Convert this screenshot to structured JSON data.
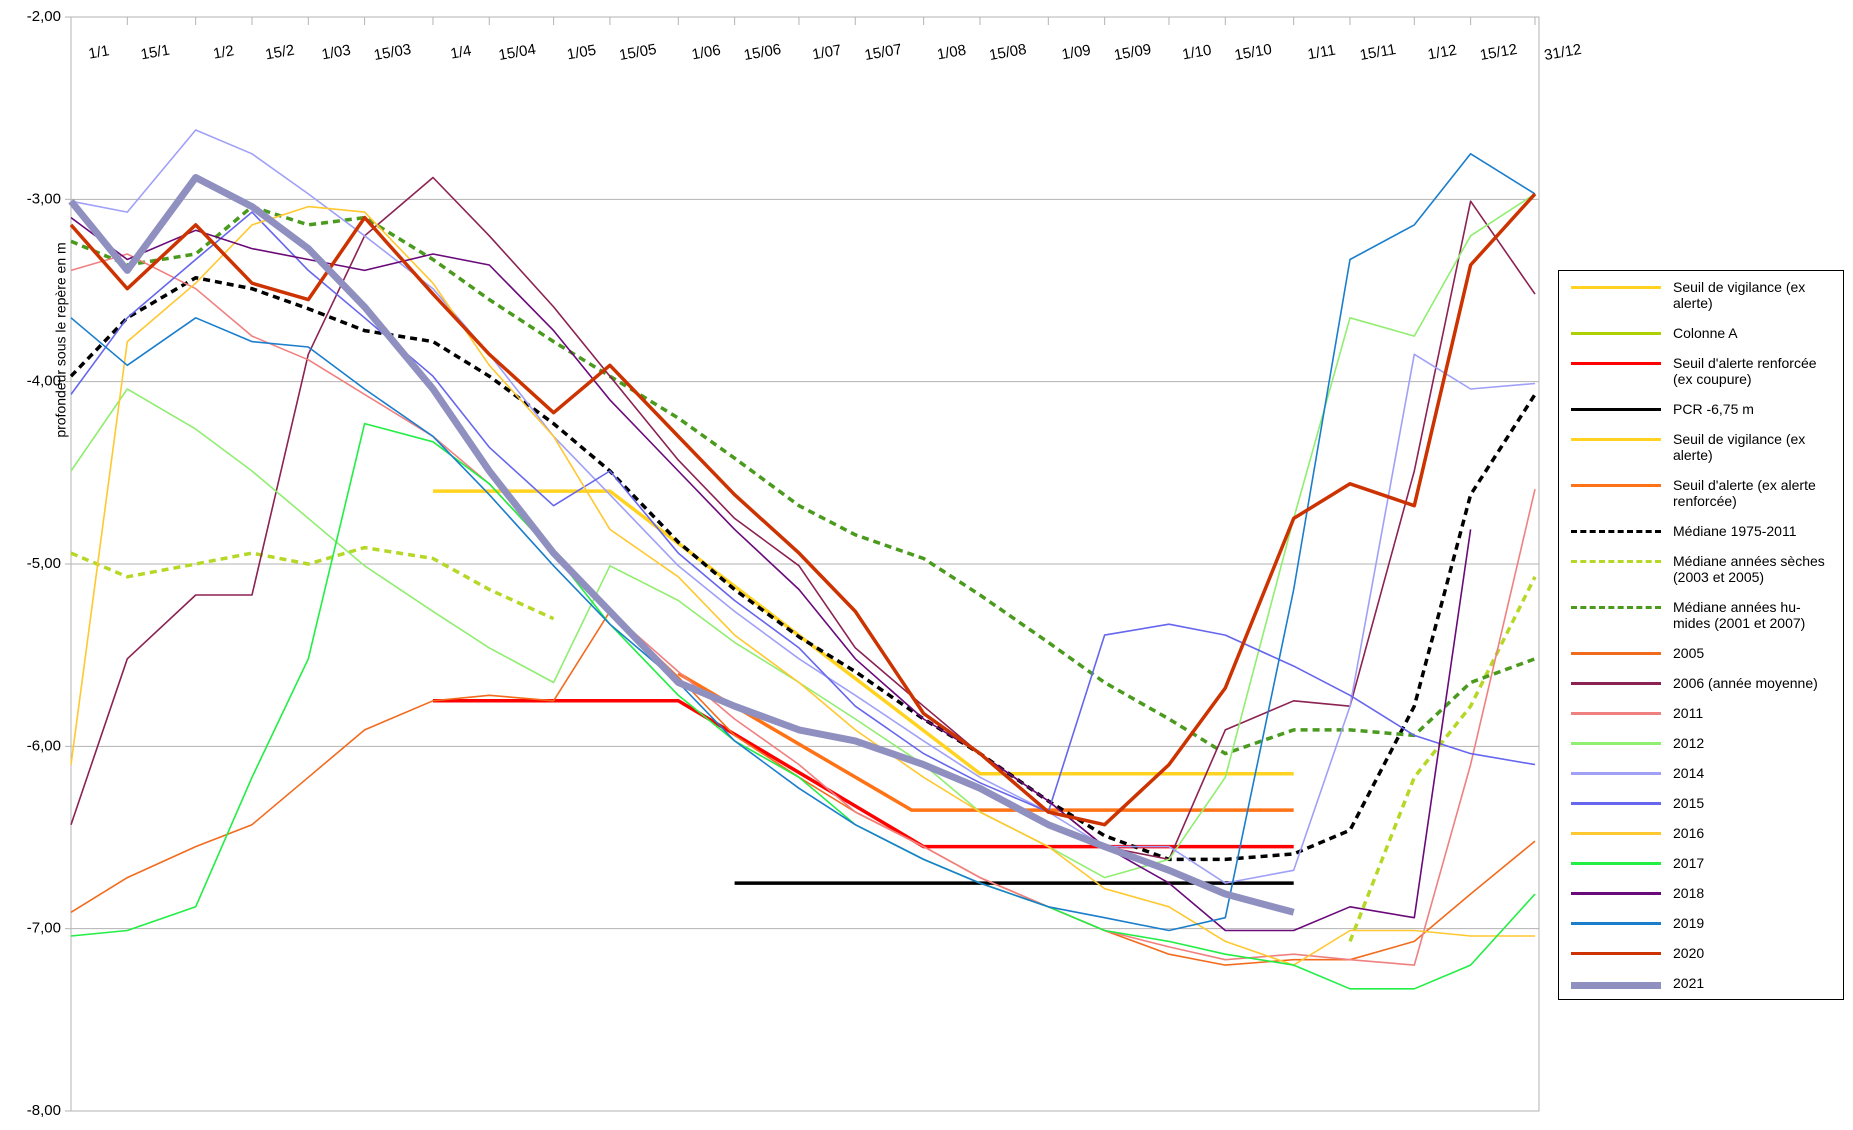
{
  "chart_data": {
    "type": "line",
    "y_label": "profondeur sous le repère en m",
    "xlim": [
      1,
      366
    ],
    "ylim": [
      -8,
      -2
    ],
    "grid": true,
    "legend": "right",
    "xticks": [
      {
        "value": 1,
        "label": "1/1"
      },
      {
        "value": 15,
        "label": "15/1"
      },
      {
        "value": 32,
        "label": "1/2"
      },
      {
        "value": 46,
        "label": "15/2"
      },
      {
        "value": 60,
        "label": "1/03"
      },
      {
        "value": 74,
        "label": "15/03"
      },
      {
        "value": 91,
        "label": "1/4"
      },
      {
        "value": 105,
        "label": "15/04"
      },
      {
        "value": 121,
        "label": "1/05"
      },
      {
        "value": 135,
        "label": "15/05"
      },
      {
        "value": 152,
        "label": "1/06"
      },
      {
        "value": 166,
        "label": "15/06"
      },
      {
        "value": 182,
        "label": "1/07"
      },
      {
        "value": 196,
        "label": "15/07"
      },
      {
        "value": 213,
        "label": "1/08"
      },
      {
        "value": 227,
        "label": "15/08"
      },
      {
        "value": 244,
        "label": "1/09"
      },
      {
        "value": 258,
        "label": "15/09"
      },
      {
        "value": 274,
        "label": "1/10"
      },
      {
        "value": 288,
        "label": "15/10"
      },
      {
        "value": 305,
        "label": "1/11"
      },
      {
        "value": 319,
        "label": "15/11"
      },
      {
        "value": 335,
        "label": "1/12"
      },
      {
        "value": 349,
        "label": "15/12"
      },
      {
        "value": 365,
        "label": "31/12"
      }
    ],
    "yticks": [
      {
        "value": -2,
        "label": "-2,00"
      },
      {
        "value": -3,
        "label": "-3,00"
      },
      {
        "value": -4,
        "label": "-4,00"
      },
      {
        "value": -5,
        "label": "-5,00"
      },
      {
        "value": -6,
        "label": "-6,00"
      },
      {
        "value": -7,
        "label": "-7,00"
      },
      {
        "value": -8,
        "label": "-8,00"
      }
    ],
    "x": [
      1,
      15,
      32,
      46,
      60,
      74,
      91,
      105,
      121,
      135,
      152,
      166,
      182,
      196,
      213,
      227,
      244,
      258,
      274,
      288,
      305,
      319,
      335,
      349,
      365
    ],
    "series": [
      {
        "name": "Seuil de vigilance (ex alerte)",
        "color": "#ffd320",
        "x": [
          91,
          135,
          227,
          305
        ],
        "values": [
          -4.6,
          -4.6,
          -6.15,
          -6.15
        ]
      },
      {
        "name": "Colonne A",
        "color": "#aecf00"
      },
      {
        "name": "Seuil d'alerte renforcée (ex coupure)",
        "color": "#ff0000",
        "x": [
          91,
          152,
          213,
          305
        ],
        "values": [
          -5.75,
          -5.75,
          -6.55,
          -6.55
        ]
      },
      {
        "name": "PCR -6,75 m",
        "color": "#000000",
        "x": [
          166,
          305
        ],
        "values": [
          -6.75,
          -6.75
        ]
      },
      {
        "name": "Seuil de vigilance (ex alerte)",
        "color": "#ffd320"
      },
      {
        "name": "Seuil d'alerte (ex alerte renforcée)",
        "color": "#ff7215",
        "x": [
          152,
          210,
          305
        ],
        "values": [
          -5.6,
          -6.35,
          -6.35
        ]
      },
      {
        "name": "Médiane 1975-2011",
        "color": "#000000",
        "dash": true,
        "values": [
          -3.97,
          -3.65,
          -3.43,
          -3.49,
          -3.6,
          -3.72,
          -3.78,
          -3.97,
          -4.23,
          -4.49,
          -4.88,
          -5.14,
          -5.4,
          -5.59,
          -5.85,
          -6.04,
          -6.3,
          -6.49,
          -6.62,
          -6.62,
          -6.59,
          -6.46,
          -5.78,
          -4.62,
          -4.07
        ]
      },
      {
        "name": "Médiane années sèches (2003 et 2005)",
        "color": "#b5d826",
        "dash": true,
        "values": [
          -4.94,
          -5.07,
          -5.0,
          -4.94,
          -5.0,
          -4.91,
          -4.97,
          -5.14,
          -5.3,
          null,
          null,
          null,
          null,
          null,
          null,
          null,
          null,
          null,
          null,
          null,
          null,
          -7.07,
          -6.17,
          -5.78,
          -5.07
        ]
      },
      {
        "name": "Médiane années hu-mides (2001 et 2007)",
        "color": "#4a9a1e",
        "dash": true,
        "values": [
          -3.23,
          -3.36,
          -3.3,
          -3.04,
          -3.14,
          -3.1,
          -3.33,
          -3.55,
          -3.78,
          -3.97,
          -4.2,
          -4.42,
          -4.68,
          -4.84,
          -4.97,
          -5.17,
          -5.43,
          -5.65,
          -5.85,
          -6.04,
          -5.91,
          -5.91,
          -5.94,
          -5.65,
          -5.52
        ]
      },
      {
        "name": "2005",
        "color": "#f26b1d",
        "values": [
          -6.91,
          -6.72,
          -6.55,
          -6.43,
          -6.17,
          -5.91,
          -5.75,
          -5.72,
          -5.75,
          -5.26,
          -5.62,
          -5.94,
          -6.17,
          -6.36,
          -6.55,
          -6.72,
          -6.88,
          -7.01,
          -7.14,
          -7.2,
          -7.17,
          -7.17,
          -7.07,
          -6.81,
          -6.52
        ]
      },
      {
        "name": "2006 (année moyenne)",
        "color": "#8b2252",
        "values": [
          -6.43,
          -5.52,
          -5.17,
          -5.17,
          -3.85,
          -3.2,
          -2.88,
          -3.2,
          -3.59,
          -3.97,
          -4.43,
          -4.75,
          -5.01,
          -5.46,
          -5.78,
          -6.04,
          -6.3,
          -6.55,
          -6.62,
          -5.91,
          -5.75,
          -5.78,
          -4.49,
          -3.01,
          -3.52
        ]
      },
      {
        "name": "2011",
        "color": "#f08080",
        "values": [
          -3.39,
          -3.3,
          -3.49,
          -3.75,
          -3.88,
          -4.07,
          -4.3,
          -4.56,
          -4.94,
          -5.26,
          -5.59,
          -5.85,
          -6.1,
          -6.36,
          -6.55,
          -6.72,
          -6.88,
          -7.01,
          -7.1,
          -7.17,
          -7.14,
          -7.17,
          -7.2,
          -6.1,
          -4.59
        ]
      },
      {
        "name": "2012",
        "color": "#90ee70",
        "values": [
          -4.49,
          -4.04,
          -4.26,
          -4.49,
          -4.75,
          -5.01,
          -5.26,
          -5.46,
          -5.65,
          -5.01,
          -5.2,
          -5.43,
          -5.65,
          -5.85,
          -6.1,
          -6.36,
          -6.55,
          -6.72,
          -6.62,
          -6.17,
          -4.75,
          -3.65,
          -3.75,
          -3.2,
          -2.97
        ]
      },
      {
        "name": "2014",
        "color": "#a0a0f8",
        "values": [
          -3.01,
          -3.07,
          -2.62,
          -2.75,
          -2.97,
          -3.2,
          -3.49,
          -3.85,
          -4.3,
          -4.62,
          -5.01,
          -5.26,
          -5.52,
          -5.72,
          -5.97,
          -6.17,
          -6.36,
          -6.55,
          -6.55,
          -6.75,
          -6.68,
          -5.78,
          -3.85,
          -4.04,
          -4.01
        ]
      },
      {
        "name": "2015",
        "color": "#6666ee",
        "values": [
          -4.07,
          -3.65,
          -3.33,
          -3.07,
          -3.39,
          -3.65,
          -3.97,
          -4.36,
          -4.68,
          -4.49,
          -4.94,
          -5.2,
          -5.46,
          -5.78,
          -6.04,
          -6.2,
          -6.36,
          -5.39,
          -5.33,
          -5.39,
          -5.56,
          -5.72,
          -5.94,
          -6.04,
          -6.1
        ]
      },
      {
        "name": "2016",
        "color": "#ffc830",
        "values": [
          -6.1,
          -3.78,
          -3.46,
          -3.14,
          -3.04,
          -3.07,
          -3.46,
          -3.91,
          -4.3,
          -4.81,
          -5.07,
          -5.39,
          -5.65,
          -5.91,
          -6.17,
          -6.36,
          -6.55,
          -6.78,
          -6.88,
          -7.07,
          -7.2,
          -7.01,
          -7.01,
          -7.04,
          -7.04
        ]
      },
      {
        "name": "2017",
        "color": "#22ee44",
        "values": [
          -7.04,
          -7.01,
          -6.88,
          -6.17,
          -5.52,
          -4.23,
          -4.33,
          -4.56,
          -4.94,
          -5.33,
          -5.72,
          -5.97,
          -6.17,
          -6.43,
          -6.62,
          -6.75,
          -6.88,
          -7.01,
          -7.07,
          -7.14,
          -7.2,
          -7.33,
          -7.33,
          -7.2,
          -6.81
        ]
      },
      {
        "name": "2018",
        "color": "#6a0a7a",
        "values": [
          -3.1,
          -3.33,
          -3.17,
          -3.27,
          -3.33,
          -3.39,
          -3.3,
          -3.36,
          -3.72,
          -4.1,
          -4.49,
          -4.81,
          -5.14,
          -5.52,
          -5.85,
          -6.04,
          -6.3,
          -6.55,
          -6.75,
          -7.01,
          -7.01,
          -6.88,
          -6.94,
          -4.81,
          null
        ]
      },
      {
        "name": "2019",
        "color": "#1a7ecc",
        "values": [
          -3.65,
          -3.91,
          -3.65,
          -3.78,
          -3.81,
          -4.04,
          -4.3,
          -4.62,
          -5.01,
          -5.33,
          -5.65,
          -5.97,
          -6.23,
          -6.43,
          -6.62,
          -6.75,
          -6.88,
          -6.94,
          -7.01,
          -6.94,
          -5.14,
          -3.33,
          -3.14,
          -2.75,
          -2.97
        ]
      },
      {
        "name": "2020",
        "color": "#cc3300",
        "values": [
          -3.14,
          -3.49,
          -3.14,
          -3.46,
          -3.55,
          -3.1,
          -3.52,
          -3.85,
          -4.17,
          -3.91,
          -4.3,
          -4.62,
          -4.94,
          -5.26,
          -5.82,
          -6.04,
          -6.36,
          -6.43,
          -6.1,
          -5.68,
          -4.75,
          -4.56,
          -4.68,
          -3.36,
          -2.97
        ]
      },
      {
        "name": "2021",
        "color": "#9090c0",
        "values": [
          -3.01,
          -3.39,
          -2.88,
          -3.04,
          -3.27,
          -3.59,
          -4.04,
          -4.49,
          -4.94,
          -5.26,
          -5.65,
          -5.78,
          -5.91,
          -5.97,
          -6.1,
          -6.23,
          -6.43,
          -6.55,
          -6.68,
          -6.81,
          -6.91,
          null,
          null,
          null,
          null
        ]
      }
    ]
  }
}
